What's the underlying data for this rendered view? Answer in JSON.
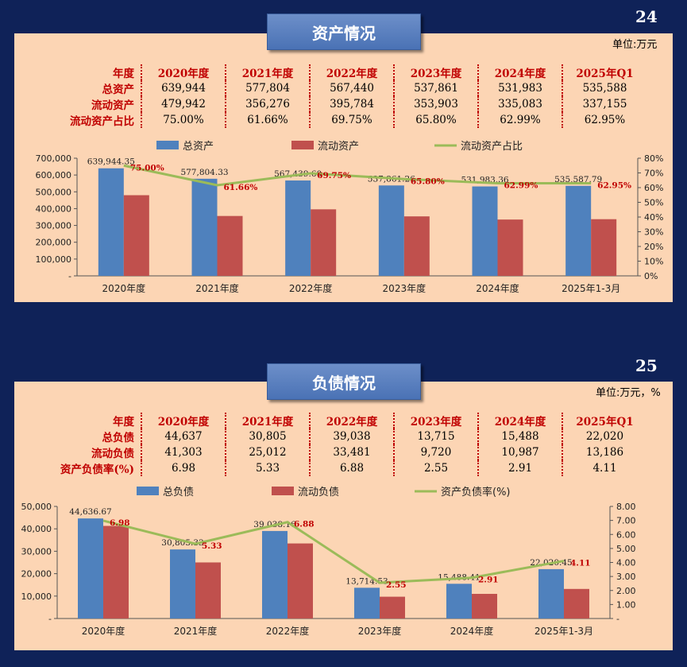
{
  "pages": [
    "24",
    "25"
  ],
  "assets": {
    "title": "资产情况",
    "unit": "单位:万元",
    "table": {
      "headers": [
        "年度",
        "2020年度",
        "2021年度",
        "2022年度",
        "2023年度",
        "2024年度",
        "2025年Q1"
      ],
      "rows": [
        {
          "label": "总资产",
          "cells": [
            "639,944",
            "577,804",
            "567,440",
            "537,861",
            "531,983",
            "535,588"
          ]
        },
        {
          "label": "流动资产",
          "cells": [
            "479,942",
            "356,276",
            "395,784",
            "353,903",
            "335,083",
            "337,155"
          ]
        },
        {
          "label": "流动资产占比",
          "cells": [
            "75.00%",
            "61.66%",
            "69.75%",
            "65.80%",
            "62.99%",
            "62.95%"
          ]
        }
      ]
    }
  },
  "liabilities": {
    "title": "负债情况",
    "unit": "单位:万元，%",
    "table": {
      "headers": [
        "年度",
        "2020年度",
        "2021年度",
        "2022年度",
        "2023年度",
        "2024年度",
        "2025年Q1"
      ],
      "rows": [
        {
          "label": "总负债",
          "cells": [
            "44,637",
            "30,805",
            "39,038",
            "13,715",
            "15,488",
            "22,020"
          ]
        },
        {
          "label": "流动负债",
          "cells": [
            "41,303",
            "25,012",
            "33,481",
            "9,720",
            "10,987",
            "13,186"
          ]
        },
        {
          "label": "资产负债率(%)",
          "cells": [
            "6.98",
            "5.33",
            "6.88",
            "2.55",
            "2.91",
            "4.11"
          ]
        }
      ]
    }
  },
  "chart_data": [
    {
      "type": "bar",
      "categories": [
        "2020年度",
        "2021年度",
        "2022年度",
        "2023年度",
        "2024年度",
        "2025年1-3月"
      ],
      "series": [
        {
          "name": "总资产",
          "type": "bar",
          "axis": "left",
          "color": "#4f81bd",
          "values": [
            639944.35,
            577804.33,
            567439.6,
            537861.26,
            531983.36,
            535587.79
          ],
          "labels": [
            "639,944.35",
            "577,804.33",
            "567,439.60",
            "537,861.26",
            "531,983.36",
            "535,587.79"
          ]
        },
        {
          "name": "流动资产",
          "type": "bar",
          "axis": "left",
          "color": "#c0504d",
          "values": [
            479942,
            356276,
            395784,
            353903,
            335083,
            337155
          ]
        },
        {
          "name": "流动资产占比",
          "type": "line",
          "axis": "right",
          "color": "#9bbb59",
          "values": [
            75.0,
            61.66,
            69.75,
            65.8,
            62.99,
            62.95
          ],
          "labels": [
            "75.00%",
            "61.66%",
            "69.75%",
            "65.80%",
            "62.99%",
            "62.95%"
          ]
        }
      ],
      "left_axis": {
        "ticks": [
          "-",
          "100,000",
          "200,000",
          "300,000",
          "400,000",
          "500,000",
          "600,000",
          "700,000"
        ],
        "range": [
          0,
          700000
        ]
      },
      "right_axis": {
        "ticks": [
          "0%",
          "10%",
          "20%",
          "30%",
          "40%",
          "50%",
          "60%",
          "70%",
          "80%"
        ],
        "range": [
          0,
          80
        ]
      },
      "legend": "top",
      "grid": false
    },
    {
      "type": "bar",
      "categories": [
        "2020年度",
        "2021年度",
        "2022年度",
        "2023年度",
        "2024年度",
        "2025年1-3月"
      ],
      "series": [
        {
          "name": "总负债",
          "type": "bar",
          "axis": "left",
          "color": "#4f81bd",
          "values": [
            44636.67,
            30805.33,
            39038.16,
            13714.53,
            15488.41,
            22020.45
          ],
          "labels": [
            "44,636.67",
            "30,805.33",
            "39,038.16",
            "13,714.53",
            "15,488.41",
            "22,020.45"
          ]
        },
        {
          "name": "流动负债",
          "type": "bar",
          "axis": "left",
          "color": "#c0504d",
          "values": [
            41303,
            25012,
            33481,
            9720,
            10987,
            13186
          ]
        },
        {
          "name": "资产负债率(%)",
          "type": "line",
          "axis": "right",
          "color": "#9bbb59",
          "values": [
            6.98,
            5.33,
            6.88,
            2.55,
            2.91,
            4.11
          ],
          "labels": [
            "6.98",
            "5.33",
            "6.88",
            "2.55",
            "2.91",
            "4.11"
          ]
        }
      ],
      "left_axis": {
        "ticks": [
          "-",
          "10,000",
          "20,000",
          "30,000",
          "40,000",
          "50,000"
        ],
        "range": [
          0,
          50000
        ]
      },
      "right_axis": {
        "ticks": [
          "-",
          "1.00",
          "2.00",
          "3.00",
          "4.00",
          "5.00",
          "6.00",
          "7.00",
          "8.00"
        ],
        "range": [
          0,
          8
        ]
      },
      "legend": "top",
      "grid": false
    }
  ]
}
